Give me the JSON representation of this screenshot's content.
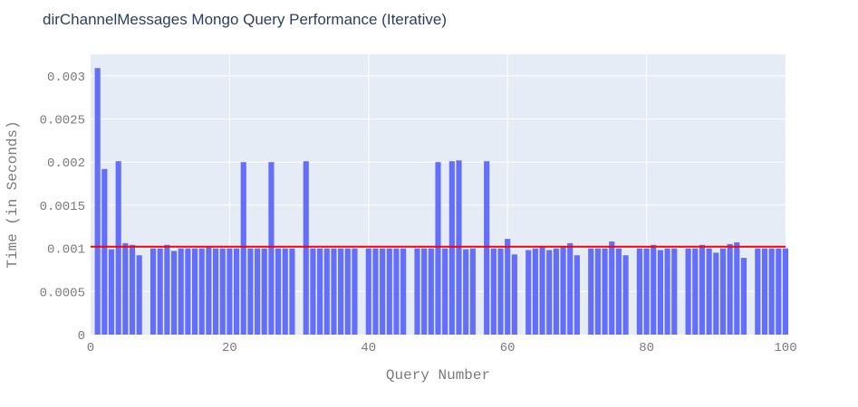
{
  "chart_data": {
    "type": "bar",
    "title": "dirChannelMessages Mongo Query Performance (Iterative)",
    "xlabel": "Query Number",
    "ylabel": "Time (in Seconds)",
    "xlim": [
      0,
      100
    ],
    "ylim": [
      0,
      0.00325
    ],
    "x_ticks": [
      0,
      20,
      40,
      60,
      80,
      100
    ],
    "y_ticks": [
      0,
      0.0005,
      0.001,
      0.0015,
      0.002,
      0.0025,
      0.003
    ],
    "y_tick_labels": [
      "0",
      "0.0005",
      "0.001",
      "0.0015",
      "0.002",
      "0.0025",
      "0.003"
    ],
    "grid": true,
    "bar_color": "#636efa",
    "reference_line": {
      "value": 0.00102,
      "color": "#ff0000"
    },
    "x": [
      1,
      2,
      3,
      4,
      5,
      6,
      7,
      9,
      10,
      11,
      12,
      13,
      14,
      15,
      16,
      17,
      18,
      19,
      20,
      21,
      22,
      23,
      24,
      25,
      26,
      27,
      28,
      29,
      31,
      32,
      33,
      34,
      35,
      36,
      37,
      38,
      40,
      41,
      42,
      43,
      44,
      45,
      47,
      48,
      49,
      50,
      51,
      52,
      53,
      54,
      55,
      57,
      58,
      59,
      60,
      61,
      63,
      64,
      65,
      66,
      67,
      68,
      69,
      70,
      72,
      73,
      74,
      75,
      76,
      77,
      79,
      80,
      81,
      82,
      83,
      84,
      86,
      87,
      88,
      89,
      90,
      91,
      92,
      93,
      94,
      96,
      97,
      98,
      99,
      100
    ],
    "values": [
      0.00309,
      0.00192,
      0.00099,
      0.00201,
      0.00106,
      0.00104,
      0.00092,
      0.001,
      0.001,
      0.00104,
      0.00097,
      0.001,
      0.001,
      0.001,
      0.001,
      0.00101,
      0.001,
      0.001,
      0.001,
      0.001,
      0.002,
      0.001,
      0.001,
      0.001,
      0.002,
      0.001,
      0.001,
      0.001,
      0.00201,
      0.001,
      0.001,
      0.001,
      0.001,
      0.001,
      0.001,
      0.001,
      0.001,
      0.001,
      0.001,
      0.001,
      0.001,
      0.001,
      0.001,
      0.001,
      0.001,
      0.002,
      0.001,
      0.00201,
      0.00202,
      0.00099,
      0.001,
      0.00201,
      0.001,
      0.001,
      0.00111,
      0.00093,
      0.00098,
      0.001,
      0.00102,
      0.00098,
      0.001,
      0.00102,
      0.00106,
      0.00092,
      0.001,
      0.001,
      0.001,
      0.00108,
      0.001,
      0.00092,
      0.001,
      0.001,
      0.00104,
      0.00098,
      0.001,
      0.001,
      0.001,
      0.001,
      0.00104,
      0.001,
      0.00095,
      0.001,
      0.00105,
      0.00107,
      0.00089,
      0.001,
      0.001,
      0.001,
      0.001,
      0.001
    ]
  }
}
